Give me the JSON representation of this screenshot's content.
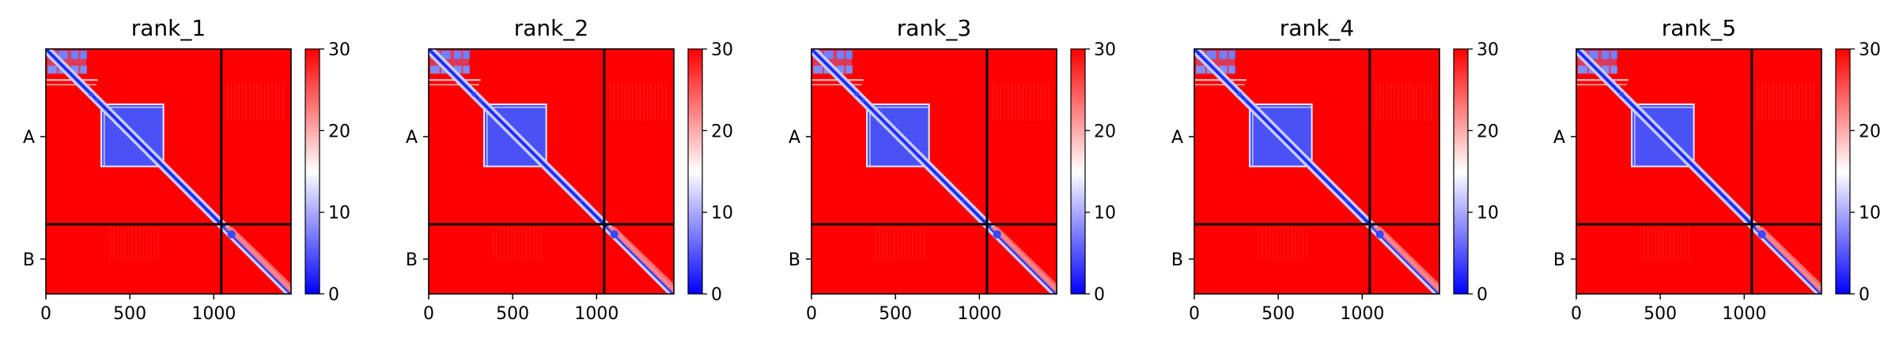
{
  "chart_data": [
    {
      "type": "heatmap",
      "title": "rank_1",
      "xticks": [
        0,
        500,
        1000
      ],
      "yticklabels": [
        "A",
        "B"
      ],
      "xlim": [
        0,
        1460
      ],
      "chain_split": 1045,
      "colorbar_ticks": [
        0,
        10,
        20,
        30
      ],
      "clim": [
        0,
        30
      ],
      "colormap": [
        "#0000ff",
        "#ffffff",
        "#ff0000"
      ]
    },
    {
      "type": "heatmap",
      "title": "rank_2",
      "xticks": [
        0,
        500,
        1000
      ],
      "yticklabels": [
        "A",
        "B"
      ],
      "xlim": [
        0,
        1460
      ],
      "chain_split": 1045,
      "colorbar_ticks": [
        0,
        10,
        20,
        30
      ],
      "clim": [
        0,
        30
      ],
      "colormap": [
        "#0000ff",
        "#ffffff",
        "#ff0000"
      ]
    },
    {
      "type": "heatmap",
      "title": "rank_3",
      "xticks": [
        0,
        500,
        1000
      ],
      "yticklabels": [
        "A",
        "B"
      ],
      "xlim": [
        0,
        1460
      ],
      "chain_split": 1045,
      "colorbar_ticks": [
        0,
        10,
        20,
        30
      ],
      "clim": [
        0,
        30
      ],
      "colormap": [
        "#0000ff",
        "#ffffff",
        "#ff0000"
      ]
    },
    {
      "type": "heatmap",
      "title": "rank_4",
      "xticks": [
        0,
        500,
        1000
      ],
      "yticklabels": [
        "A",
        "B"
      ],
      "xlim": [
        0,
        1460
      ],
      "chain_split": 1045,
      "colorbar_ticks": [
        0,
        10,
        20,
        30
      ],
      "clim": [
        0,
        30
      ],
      "colormap": [
        "#0000ff",
        "#ffffff",
        "#ff0000"
      ]
    },
    {
      "type": "heatmap",
      "title": "rank_5",
      "xticks": [
        0,
        500,
        1000
      ],
      "yticklabels": [
        "A",
        "B"
      ],
      "xlim": [
        0,
        1460
      ],
      "chain_split": 1045,
      "colorbar_ticks": [
        0,
        10,
        20,
        30
      ],
      "clim": [
        0,
        30
      ],
      "colormap": [
        "#0000ff",
        "#ffffff",
        "#ff0000"
      ]
    }
  ]
}
